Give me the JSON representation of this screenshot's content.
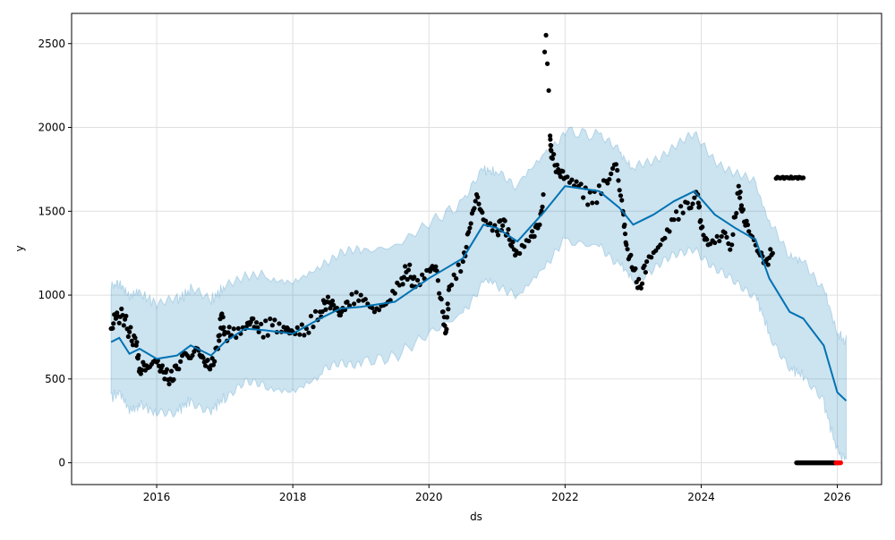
{
  "chart_data": {
    "type": "line",
    "title": "",
    "xlabel": "ds",
    "ylabel": "y",
    "xlim": [
      2014.75,
      2026.65
    ],
    "ylim": [
      -130,
      2680
    ],
    "x_ticks": [
      2016,
      2018,
      2020,
      2022,
      2024,
      2026
    ],
    "x_tick_labels": [
      "2016",
      "2018",
      "2020",
      "2022",
      "2024",
      "2026"
    ],
    "y_ticks": [
      0,
      500,
      1000,
      1500,
      2000,
      2500
    ],
    "y_tick_labels": [
      "0",
      "500",
      "1000",
      "1500",
      "2000",
      "2500"
    ],
    "grid": true,
    "colors": {
      "forecast": "#0072B2",
      "band": "#0072B2",
      "observed": "#000000",
      "future": "#ff0000"
    },
    "forecast": {
      "name": "yhat",
      "x": [
        2015.33,
        2015.45,
        2015.6,
        2015.75,
        2016.0,
        2016.3,
        2016.5,
        2016.8,
        2017.0,
        2017.3,
        2017.6,
        2018.0,
        2018.4,
        2018.7,
        2019.0,
        2019.5,
        2020.0,
        2020.5,
        2020.8,
        2021.0,
        2021.3,
        2021.7,
        2022.0,
        2022.5,
        2022.8,
        2023.0,
        2023.3,
        2023.6,
        2023.9,
        2024.2,
        2024.5,
        2024.8,
        2025.0,
        2025.3,
        2025.5,
        2025.8,
        2026.0,
        2026.13
      ],
      "yhat": [
        720,
        745,
        650,
        680,
        620,
        640,
        700,
        640,
        720,
        800,
        790,
        770,
        860,
        920,
        930,
        960,
        1100,
        1220,
        1420,
        1400,
        1320,
        1500,
        1650,
        1620,
        1520,
        1420,
        1480,
        1560,
        1620,
        1480,
        1400,
        1330,
        1100,
        900,
        860,
        700,
        420,
        370
      ],
      "band_halfwidth": [
        330,
        330,
        330,
        330,
        330,
        330,
        330,
        330,
        330,
        330,
        330,
        330,
        330,
        330,
        330,
        330,
        330,
        330,
        330,
        330,
        330,
        330,
        330,
        330,
        330,
        330,
        330,
        330,
        330,
        330,
        330,
        330,
        330,
        335,
        340,
        345,
        350,
        355
      ]
    },
    "observed": {
      "name": "y",
      "x": [
        2015.33,
        2015.4,
        2015.5,
        2015.6,
        2015.7,
        2015.75,
        2015.85,
        2016.0,
        2016.1,
        2016.2,
        2016.3,
        2016.45,
        2016.6,
        2016.7,
        2016.8,
        2016.9,
        2016.95,
        2017.0,
        2017.1,
        2017.3,
        2017.4,
        2017.5,
        2017.7,
        2017.9,
        2018.0,
        2018.2,
        2018.4,
        2018.5,
        2018.6,
        2018.7,
        2018.8,
        2019.0,
        2019.2,
        2019.4,
        2019.6,
        2019.7,
        2019.8,
        2020.0,
        2020.1,
        2020.2,
        2020.25,
        2020.3,
        2020.5,
        2020.6,
        2020.7,
        2020.8,
        2021.0,
        2021.1,
        2021.2,
        2021.3,
        2021.5,
        2021.6,
        2021.68,
        2021.7,
        2021.72,
        2021.74,
        2021.76,
        2021.78,
        2021.8,
        2021.9,
        2022.0,
        2022.2,
        2022.4,
        2022.6,
        2022.75,
        2022.85,
        2022.9,
        2023.0,
        2023.1,
        2023.2,
        2023.4,
        2023.6,
        2023.8,
        2023.95,
        2024.0,
        2024.1,
        2024.3,
        2024.45,
        2024.55,
        2024.6,
        2024.7,
        2024.85,
        2024.95,
        2025.05
      ],
      "y": [
        800,
        860,
        880,
        780,
        700,
        560,
        580,
        600,
        540,
        500,
        560,
        640,
        680,
        600,
        580,
        680,
        880,
        780,
        760,
        800,
        860,
        780,
        820,
        790,
        780,
        800,
        900,
        960,
        940,
        880,
        960,
        1000,
        900,
        960,
        1100,
        1150,
        1050,
        1150,
        1170,
        900,
        780,
        1050,
        1200,
        1400,
        1600,
        1450,
        1380,
        1450,
        1300,
        1250,
        1350,
        1400,
        1600,
        2450,
        2550,
        2380,
        2220,
        1950,
        1820,
        1750,
        1700,
        1650,
        1550,
        1680,
        1780,
        1500,
        1300,
        1150,
        1050,
        1200,
        1300,
        1450,
        1550,
        1600,
        1400,
        1300,
        1350,
        1300,
        1650,
        1500,
        1380,
        1250,
        1200,
        1250
      ],
      "plateau": {
        "x": [
          2025.1,
          2025.5
        ],
        "y": 1700
      },
      "zeros": {
        "x": [
          2025.4,
          2025.98
        ],
        "y": 0
      }
    },
    "future": {
      "name": "future y",
      "x": [
        2025.98,
        2026.05
      ],
      "y": 0
    }
  }
}
